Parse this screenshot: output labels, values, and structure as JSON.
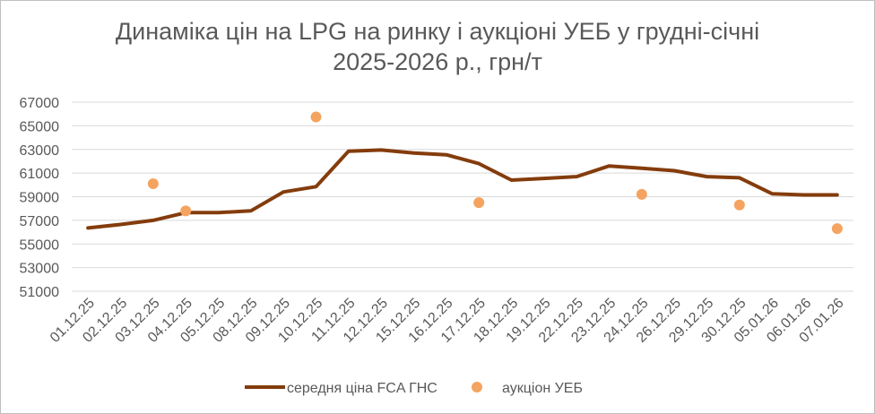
{
  "chart_data": {
    "type": "line",
    "title_line1": "Динаміка цін на LPG на ринку і аукціоні УЕБ у грудні-січні",
    "title_line2": "2025-2026 р., грн/т",
    "categories": [
      "01.12.25",
      "02.12.25",
      "03.12.25",
      "04.12.25",
      "05.12.25",
      "08.12.25",
      "09.12.25",
      "10.12.25",
      "11.12.25",
      "12.12.25",
      "15.12.25",
      "16.12.25",
      "17.12.25",
      "18.12.25",
      "19.12.25",
      "22.12.25",
      "23.12.25",
      "24.12.25",
      "26.12.25",
      "29.12.25",
      "30.12.25",
      "05.01.26",
      "06.01.26",
      "07.01.26"
    ],
    "ylim": [
      51000,
      67000
    ],
    "yticks": [
      51000,
      53000,
      55000,
      57000,
      59000,
      61000,
      63000,
      65000,
      67000
    ],
    "grid": true,
    "legend_position": "bottom",
    "series": [
      {
        "name": "середня ціна FCA ГНС",
        "kind": "line",
        "color": "#843c0c",
        "values": [
          56350,
          56650,
          57000,
          57650,
          57650,
          57800,
          59400,
          59850,
          62850,
          62950,
          62700,
          62550,
          61800,
          60400,
          60550,
          60700,
          61600,
          61400,
          61200,
          60700,
          60600,
          59250,
          59150,
          59150
        ]
      },
      {
        "name": "аукціон УЕБ",
        "kind": "scatter",
        "color": "#f4a460",
        "points": [
          {
            "x": "03.12.25",
            "y": 60100
          },
          {
            "x": "04.12.25",
            "y": 57800
          },
          {
            "x": "10.12.25",
            "y": 65750
          },
          {
            "x": "17.12.25",
            "y": 58500
          },
          {
            "x": "24.12.25",
            "y": 59200
          },
          {
            "x": "30.12.25",
            "y": 58300
          },
          {
            "x": "07.01.26",
            "y": 56300
          }
        ]
      }
    ]
  }
}
